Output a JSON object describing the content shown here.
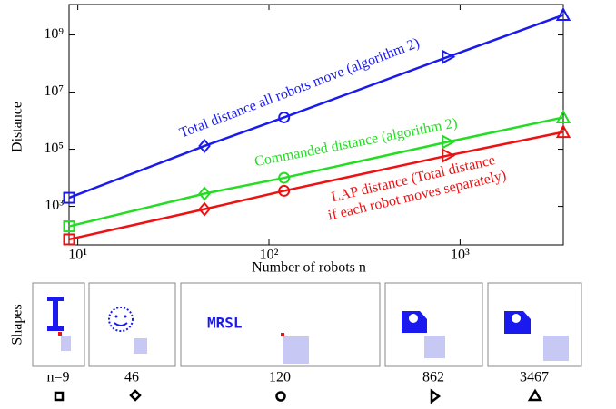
{
  "chart_data": {
    "type": "line",
    "log_x": true,
    "log_y": true,
    "x": [
      9,
      46,
      120,
      862,
      3467
    ],
    "xlim": [
      9,
      3467
    ],
    "ylim": [
      45,
      11600000000
    ],
    "xticks": [
      {
        "value": 10,
        "label": "10¹"
      },
      {
        "value": 100,
        "label": "10²"
      },
      {
        "value": 1000,
        "label": "10³"
      }
    ],
    "yticks": [
      {
        "value": 1000,
        "label": "10³"
      },
      {
        "value": 100000,
        "label": "10⁵"
      },
      {
        "value": 10000000,
        "label": "10⁷"
      },
      {
        "value": 1000000000,
        "label": "10⁹"
      }
    ],
    "xlabel": "Number of robots n",
    "ylabel": "Distance",
    "markers": [
      "square",
      "diamond",
      "circle",
      "triangle-right",
      "triangle-up"
    ],
    "series": [
      {
        "label_lines": [
          "Total distance all robots move (algorithm 2)"
        ],
        "color": "#1a1aee",
        "values": [
          2000,
          130000,
          1300000,
          170000000,
          5000000000
        ]
      },
      {
        "label_lines": [
          "Commanded distance (algorithm 2)"
        ],
        "color": "#22dd22",
        "values": [
          200,
          2800,
          10000,
          180000,
          1300000
        ]
      },
      {
        "label_lines": [
          "LAP distance (Total distance",
          "if each robot moves separately)"
        ],
        "color": "#ee1111",
        "values": [
          70,
          800,
          3500,
          60000,
          400000
        ]
      }
    ]
  },
  "shapes_panel": {
    "title": "Shapes",
    "labels": [
      "n=9",
      "46",
      "120",
      "862",
      "3467"
    ],
    "glyph": "MRSL"
  }
}
